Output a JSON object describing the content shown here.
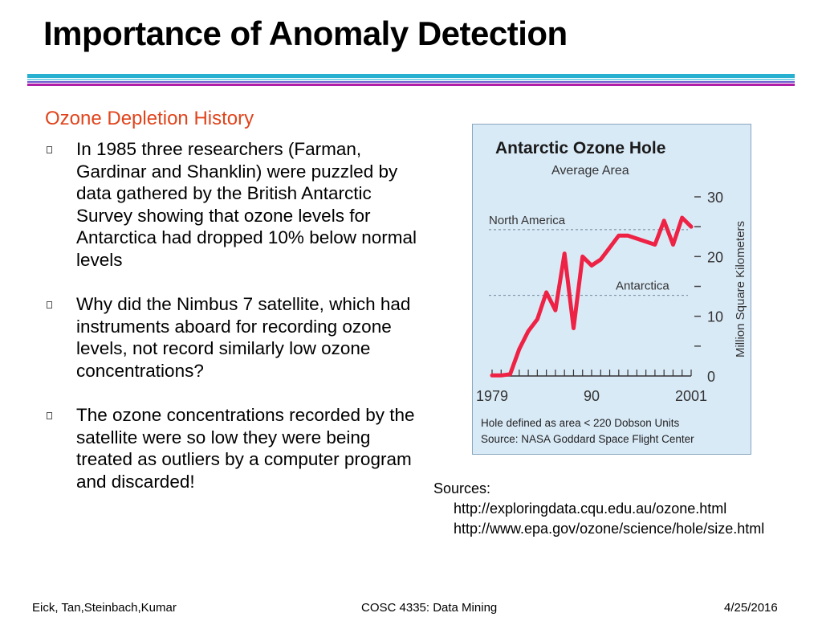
{
  "slide": {
    "title": "Importance of Anomaly Detection",
    "subtitle": "Ozone Depletion History",
    "bullets": [
      "In 1985 three researchers (Farman, Gardinar and Shanklin) were puzzled by data gathered by the British Antarctic Survey showing that ozone levels for Antarctica had dropped 10% below normal levels",
      "Why did the Nimbus 7 satellite, which had instruments aboard for recording ozone levels, not record similarly low ozone concentrations?",
      "The ozone concentrations recorded by the satellite were so low they were being treated as outliers by a computer program and discarded!"
    ],
    "sources_label": "Sources:",
    "sources": [
      "http://exploringdata.cqu.edu.au/ozone.html",
      "http://www.epa.gov/ozone/science/hole/size.html"
    ],
    "footer": {
      "left": "Eick, Tan,Steinbach,Kumar",
      "center": "COSC 4335: Data Mining",
      "right": "4/25/2016"
    }
  },
  "chart_data": {
    "type": "line",
    "title": "Antarctic Ozone Hole",
    "subtitle": "Average Area",
    "ylabel": "Million Square Kilometers",
    "xlabel": "",
    "x_tick_labels": [
      "1979",
      "90",
      "2001"
    ],
    "y_tick_labels": [
      "0",
      "10",
      "20",
      "30"
    ],
    "xlim": [
      1979,
      2001
    ],
    "ylim": [
      0,
      30
    ],
    "reference_lines": [
      {
        "label": "North America",
        "value": 24.5
      },
      {
        "label": "Antarctica",
        "value": 13.5
      }
    ],
    "series": [
      {
        "name": "Average Area",
        "color": "#ee2244",
        "x": [
          1979,
          1980,
          1981,
          1982,
          1983,
          1984,
          1985,
          1986,
          1987,
          1988,
          1989,
          1990,
          1991,
          1992,
          1993,
          1994,
          1995,
          1996,
          1997,
          1998,
          1999,
          2000,
          2001
        ],
        "values": [
          0.1,
          0.1,
          0.3,
          4.5,
          7.5,
          9.5,
          14,
          11,
          20.5,
          8,
          20,
          18.5,
          19.5,
          21.5,
          23.5,
          23.5,
          23,
          22.5,
          22,
          26,
          22,
          26.5,
          25
        ]
      }
    ],
    "notes": [
      "Hole defined as area < 220 Dobson Units",
      "Source:  NASA Goddard Space Flight Center"
    ]
  }
}
